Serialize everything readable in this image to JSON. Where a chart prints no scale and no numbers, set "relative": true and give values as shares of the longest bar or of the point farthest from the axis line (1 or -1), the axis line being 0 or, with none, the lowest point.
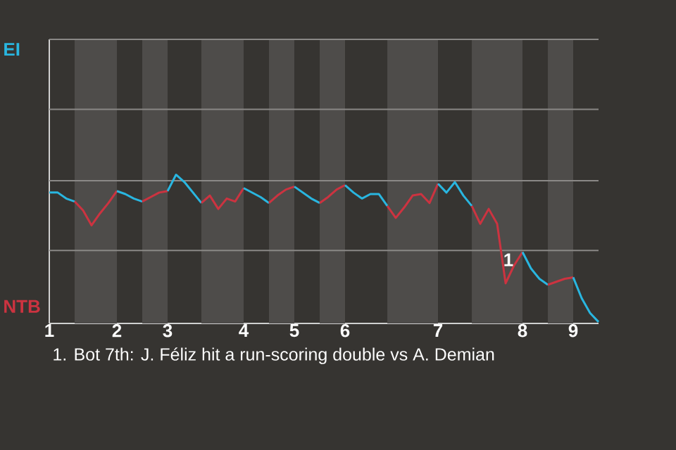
{
  "chart_data": {
    "type": "line",
    "relative": true,
    "ref_lines": [
      {
        "axis": "y",
        "value": 0.49,
        "color": "#8a8886"
      },
      {
        "axis": "y",
        "value": 0.96,
        "color": "#8a8886"
      },
      {
        "axis": "y",
        "value": 1.44,
        "color": "#8a8886"
      },
      {
        "axis": "y",
        "value": 1.91,
        "color": "#8a8886"
      }
    ],
    "categories": [
      "1",
      null,
      null,
      null,
      null,
      null,
      null,
      null,
      "2",
      null,
      null,
      null,
      null,
      null,
      "3",
      null,
      null,
      null,
      null,
      null,
      null,
      null,
      null,
      "4",
      null,
      null,
      null,
      null,
      null,
      "5",
      null,
      null,
      null,
      null,
      null,
      "6",
      null,
      null,
      null,
      null,
      null,
      null,
      null,
      null,
      null,
      null,
      "7",
      null,
      null,
      null,
      null,
      null,
      null,
      null,
      null,
      null,
      "8",
      null,
      null,
      null,
      null,
      null,
      "9",
      null,
      null,
      null
    ],
    "series": [
      {
        "color": "#29b6e0",
        "values": [
          0.88,
          0.88,
          0.84,
          0.82,
          null,
          null,
          null,
          null,
          null,
          null,
          null,
          null,
          null,
          null,
          null,
          null,
          null,
          null,
          null,
          null,
          null,
          null,
          null,
          null,
          null,
          null,
          null,
          null,
          null,
          null,
          null,
          null,
          null,
          null,
          null,
          null,
          null,
          null,
          null,
          null,
          null,
          null,
          null,
          null,
          null,
          null,
          null,
          null,
          null,
          null,
          null,
          null,
          null,
          null,
          null,
          null,
          null,
          null,
          null,
          null,
          null,
          null,
          null,
          null,
          null,
          null
        ]
      },
      {
        "color": "#cc3340",
        "values": [
          null,
          null,
          null,
          0.82,
          0.76,
          0.66,
          0.74,
          0.81,
          0.89,
          null,
          null,
          null,
          null,
          null,
          null,
          null,
          null,
          null,
          null,
          null,
          null,
          null,
          null,
          null,
          null,
          null,
          null,
          null,
          null,
          null,
          null,
          null,
          null,
          null,
          null,
          null,
          null,
          null,
          null,
          null,
          null,
          null,
          null,
          null,
          null,
          null,
          null,
          null,
          null,
          null,
          null,
          null,
          null,
          null,
          null,
          null,
          null,
          null,
          null,
          null,
          null,
          null,
          null,
          null,
          null,
          null
        ]
      },
      {
        "color": "#29b6e0",
        "values": [
          null,
          null,
          null,
          null,
          null,
          null,
          null,
          null,
          0.89,
          0.87,
          0.84,
          0.82,
          null,
          null,
          null,
          null,
          null,
          null,
          null,
          null,
          null,
          null,
          null,
          null,
          null,
          null,
          null,
          null,
          null,
          null,
          null,
          null,
          null,
          null,
          null,
          null,
          null,
          null,
          null,
          null,
          null,
          null,
          null,
          null,
          null,
          null,
          null,
          null,
          null,
          null,
          null,
          null,
          null,
          null,
          null,
          null,
          null,
          null,
          null,
          null,
          null,
          null,
          null,
          null,
          null,
          null
        ]
      },
      {
        "color": "#cc3340",
        "values": [
          null,
          null,
          null,
          null,
          null,
          null,
          null,
          null,
          null,
          null,
          null,
          0.82,
          0.85,
          0.88,
          0.89,
          null,
          null,
          null,
          null,
          null,
          null,
          null,
          null,
          null,
          null,
          null,
          null,
          null,
          null,
          null,
          null,
          null,
          null,
          null,
          null,
          null,
          null,
          null,
          null,
          null,
          null,
          null,
          null,
          null,
          null,
          null,
          null,
          null,
          null,
          null,
          null,
          null,
          null,
          null,
          null,
          null,
          null,
          null,
          null,
          null,
          null,
          null,
          null,
          null,
          null,
          null
        ]
      },
      {
        "color": "#29b6e0",
        "values": [
          null,
          null,
          null,
          null,
          null,
          null,
          null,
          null,
          null,
          null,
          null,
          null,
          null,
          null,
          0.89,
          1.0,
          0.95,
          0.88,
          0.81,
          null,
          null,
          null,
          null,
          null,
          null,
          null,
          null,
          null,
          null,
          null,
          null,
          null,
          null,
          null,
          null,
          null,
          null,
          null,
          null,
          null,
          null,
          null,
          null,
          null,
          null,
          null,
          null,
          null,
          null,
          null,
          null,
          null,
          null,
          null,
          null,
          null,
          null,
          null,
          null,
          null,
          null,
          null,
          null,
          null,
          null,
          null
        ]
      },
      {
        "color": "#cc3340",
        "values": [
          null,
          null,
          null,
          null,
          null,
          null,
          null,
          null,
          null,
          null,
          null,
          null,
          null,
          null,
          null,
          null,
          null,
          null,
          0.81,
          0.86,
          0.77,
          0.84,
          0.82,
          0.91,
          null,
          null,
          null,
          null,
          null,
          null,
          null,
          null,
          null,
          null,
          null,
          null,
          null,
          null,
          null,
          null,
          null,
          null,
          null,
          null,
          null,
          null,
          null,
          null,
          null,
          null,
          null,
          null,
          null,
          null,
          null,
          null,
          null,
          null,
          null,
          null,
          null,
          null,
          null,
          null,
          null,
          null
        ]
      },
      {
        "color": "#29b6e0",
        "values": [
          null,
          null,
          null,
          null,
          null,
          null,
          null,
          null,
          null,
          null,
          null,
          null,
          null,
          null,
          null,
          null,
          null,
          null,
          null,
          null,
          null,
          null,
          null,
          0.91,
          0.88,
          0.85,
          0.81,
          null,
          null,
          null,
          null,
          null,
          null,
          null,
          null,
          null,
          null,
          null,
          null,
          null,
          null,
          null,
          null,
          null,
          null,
          null,
          null,
          null,
          null,
          null,
          null,
          null,
          null,
          null,
          null,
          null,
          null,
          null,
          null,
          null,
          null,
          null,
          null,
          null,
          null,
          null
        ]
      },
      {
        "color": "#cc3340",
        "values": [
          null,
          null,
          null,
          null,
          null,
          null,
          null,
          null,
          null,
          null,
          null,
          null,
          null,
          null,
          null,
          null,
          null,
          null,
          null,
          null,
          null,
          null,
          null,
          null,
          null,
          null,
          0.81,
          0.86,
          0.9,
          0.92,
          null,
          null,
          null,
          null,
          null,
          null,
          null,
          null,
          null,
          null,
          null,
          null,
          null,
          null,
          null,
          null,
          null,
          null,
          null,
          null,
          null,
          null,
          null,
          null,
          null,
          null,
          null,
          null,
          null,
          null,
          null,
          null,
          null,
          null,
          null,
          null
        ]
      },
      {
        "color": "#29b6e0",
        "values": [
          null,
          null,
          null,
          null,
          null,
          null,
          null,
          null,
          null,
          null,
          null,
          null,
          null,
          null,
          null,
          null,
          null,
          null,
          null,
          null,
          null,
          null,
          null,
          null,
          null,
          null,
          null,
          null,
          null,
          0.92,
          0.88,
          0.84,
          0.81,
          null,
          null,
          null,
          null,
          null,
          null,
          null,
          null,
          null,
          null,
          null,
          null,
          null,
          null,
          null,
          null,
          null,
          null,
          null,
          null,
          null,
          null,
          null,
          null,
          null,
          null,
          null,
          null,
          null,
          null,
          null,
          null,
          null
        ]
      },
      {
        "color": "#cc3340",
        "values": [
          null,
          null,
          null,
          null,
          null,
          null,
          null,
          null,
          null,
          null,
          null,
          null,
          null,
          null,
          null,
          null,
          null,
          null,
          null,
          null,
          null,
          null,
          null,
          null,
          null,
          null,
          null,
          null,
          null,
          null,
          null,
          null,
          0.81,
          0.85,
          0.9,
          0.93,
          null,
          null,
          null,
          null,
          null,
          null,
          null,
          null,
          null,
          null,
          null,
          null,
          null,
          null,
          null,
          null,
          null,
          null,
          null,
          null,
          null,
          null,
          null,
          null,
          null,
          null,
          null,
          null,
          null,
          null
        ]
      },
      {
        "color": "#29b6e0",
        "values": [
          null,
          null,
          null,
          null,
          null,
          null,
          null,
          null,
          null,
          null,
          null,
          null,
          null,
          null,
          null,
          null,
          null,
          null,
          null,
          null,
          null,
          null,
          null,
          null,
          null,
          null,
          null,
          null,
          null,
          null,
          null,
          null,
          null,
          null,
          null,
          0.93,
          0.88,
          0.84,
          0.87,
          0.87,
          0.79,
          null,
          null,
          null,
          null,
          null,
          null,
          null,
          null,
          null,
          null,
          null,
          null,
          null,
          null,
          null,
          null,
          null,
          null,
          null,
          null,
          null,
          null,
          null,
          null,
          null
        ]
      },
      {
        "color": "#cc3340",
        "values": [
          null,
          null,
          null,
          null,
          null,
          null,
          null,
          null,
          null,
          null,
          null,
          null,
          null,
          null,
          null,
          null,
          null,
          null,
          null,
          null,
          null,
          null,
          null,
          null,
          null,
          null,
          null,
          null,
          null,
          null,
          null,
          null,
          null,
          null,
          null,
          null,
          null,
          null,
          null,
          null,
          0.79,
          0.71,
          0.78,
          0.86,
          0.87,
          0.81,
          0.94,
          null,
          null,
          null,
          null,
          null,
          null,
          null,
          null,
          null,
          null,
          null,
          null,
          null,
          null,
          null,
          null,
          null,
          null,
          null
        ]
      },
      {
        "color": "#29b6e0",
        "values": [
          null,
          null,
          null,
          null,
          null,
          null,
          null,
          null,
          null,
          null,
          null,
          null,
          null,
          null,
          null,
          null,
          null,
          null,
          null,
          null,
          null,
          null,
          null,
          null,
          null,
          null,
          null,
          null,
          null,
          null,
          null,
          null,
          null,
          null,
          null,
          null,
          null,
          null,
          null,
          null,
          null,
          null,
          null,
          null,
          null,
          null,
          0.94,
          0.88,
          0.95,
          0.86,
          0.79,
          null,
          null,
          null,
          null,
          null,
          null,
          null,
          null,
          null,
          null,
          null,
          null,
          null,
          null,
          null
        ]
      },
      {
        "color": "#cc3340",
        "values": [
          null,
          null,
          null,
          null,
          null,
          null,
          null,
          null,
          null,
          null,
          null,
          null,
          null,
          null,
          null,
          null,
          null,
          null,
          null,
          null,
          null,
          null,
          null,
          null,
          null,
          null,
          null,
          null,
          null,
          null,
          null,
          null,
          null,
          null,
          null,
          null,
          null,
          null,
          null,
          null,
          null,
          null,
          null,
          null,
          null,
          null,
          null,
          null,
          null,
          null,
          0.79,
          0.67,
          0.77,
          0.67,
          0.27,
          0.39,
          0.48,
          null,
          null,
          null,
          null,
          null,
          null,
          null,
          null,
          null
        ]
      },
      {
        "color": "#29b6e0",
        "values": [
          null,
          null,
          null,
          null,
          null,
          null,
          null,
          null,
          null,
          null,
          null,
          null,
          null,
          null,
          null,
          null,
          null,
          null,
          null,
          null,
          null,
          null,
          null,
          null,
          null,
          null,
          null,
          null,
          null,
          null,
          null,
          null,
          null,
          null,
          null,
          null,
          null,
          null,
          null,
          null,
          null,
          null,
          null,
          null,
          null,
          null,
          null,
          null,
          null,
          null,
          null,
          null,
          null,
          null,
          null,
          null,
          0.48,
          0.37,
          0.3,
          0.26,
          null,
          null,
          null,
          null,
          null,
          null
        ]
      },
      {
        "color": "#cc3340",
        "values": [
          null,
          null,
          null,
          null,
          null,
          null,
          null,
          null,
          null,
          null,
          null,
          null,
          null,
          null,
          null,
          null,
          null,
          null,
          null,
          null,
          null,
          null,
          null,
          null,
          null,
          null,
          null,
          null,
          null,
          null,
          null,
          null,
          null,
          null,
          null,
          null,
          null,
          null,
          null,
          null,
          null,
          null,
          null,
          null,
          null,
          null,
          null,
          null,
          null,
          null,
          null,
          null,
          null,
          null,
          null,
          null,
          null,
          null,
          null,
          0.26,
          0.28,
          0.3,
          0.31,
          null,
          null,
          null
        ]
      },
      {
        "color": "#29b6e0",
        "values": [
          null,
          null,
          null,
          null,
          null,
          null,
          null,
          null,
          null,
          null,
          null,
          null,
          null,
          null,
          null,
          null,
          null,
          null,
          null,
          null,
          null,
          null,
          null,
          null,
          null,
          null,
          null,
          null,
          null,
          null,
          null,
          null,
          null,
          null,
          null,
          null,
          null,
          null,
          null,
          null,
          null,
          null,
          null,
          null,
          null,
          null,
          null,
          null,
          null,
          null,
          null,
          null,
          null,
          null,
          null,
          null,
          null,
          null,
          null,
          null,
          null,
          null,
          0.31,
          0.17,
          0.07,
          0.01
        ]
      }
    ],
    "annotations": [
      "EI",
      "NTB",
      "1",
      "1. Bot 7th: J. Féliz hit a run-scoring double vs A. Demian"
    ]
  }
}
